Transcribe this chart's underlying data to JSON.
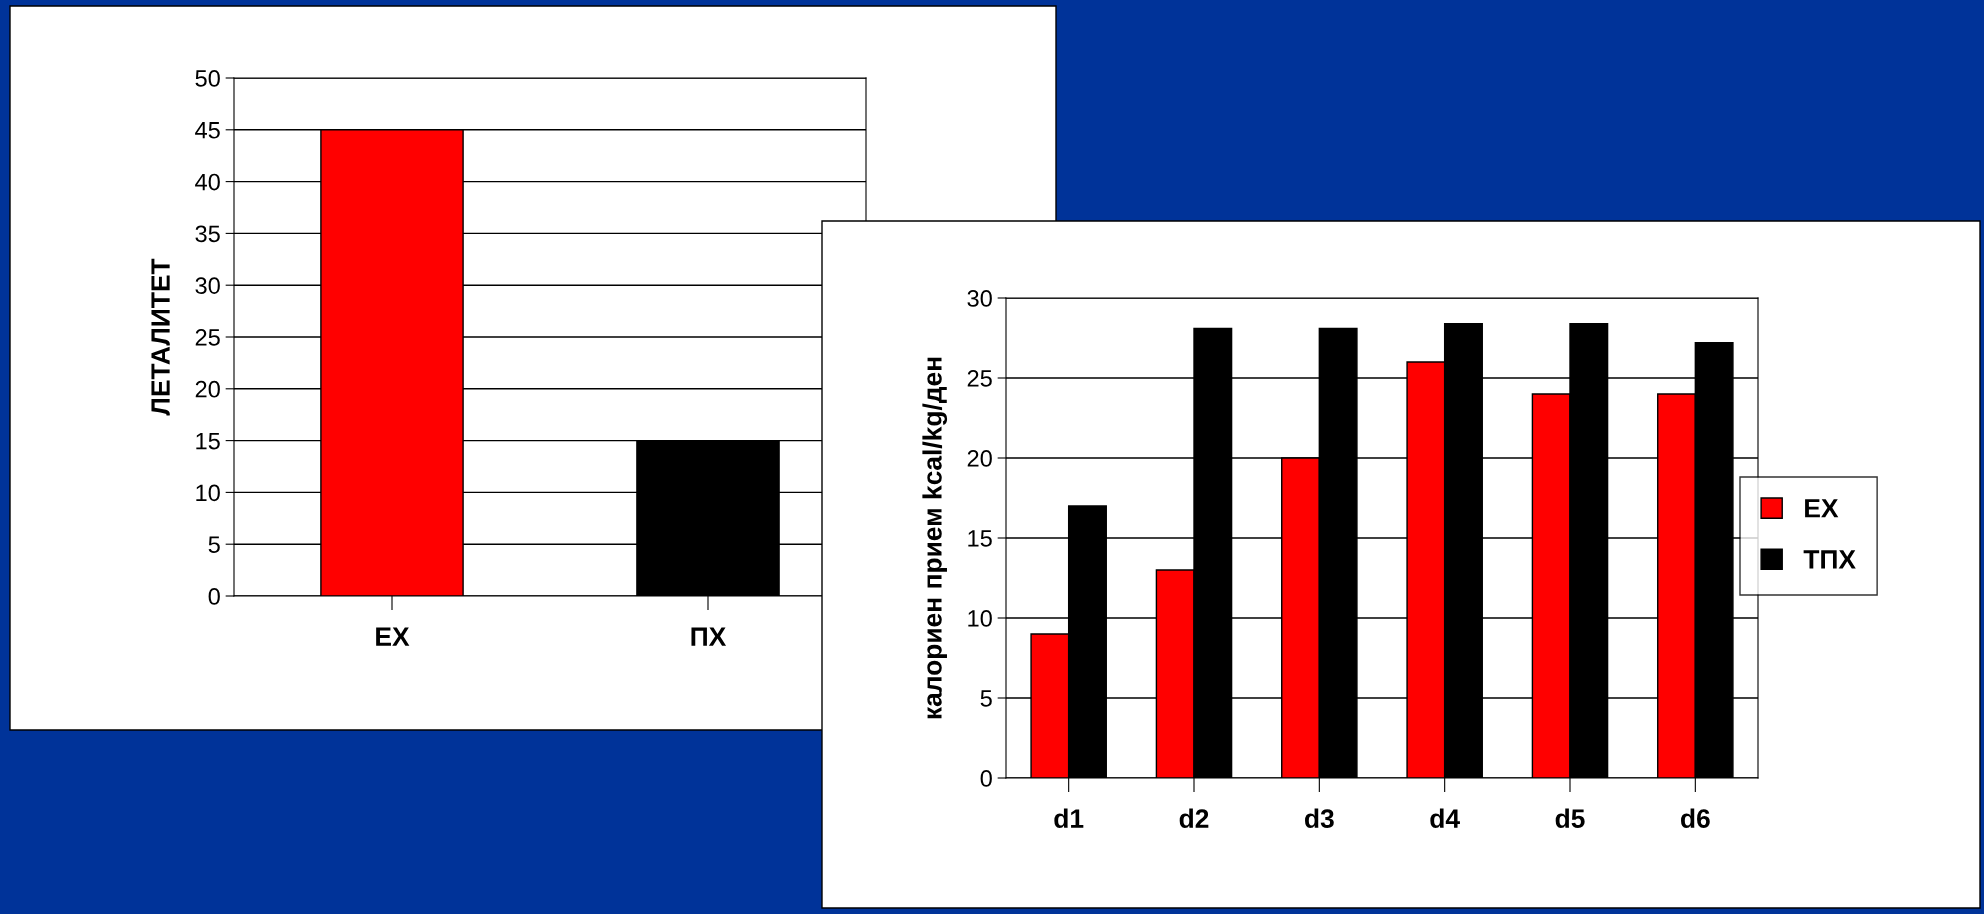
{
  "chart_data": [
    {
      "type": "bar",
      "ylabel": "ЛЕТАЛИТЕТ",
      "categories": [
        "ЕХ",
        "ПХ"
      ],
      "values": [
        45,
        15
      ],
      "colors": [
        "#ff0000",
        "#000000"
      ],
      "ylim": [
        0,
        50
      ],
      "yticks": [
        0,
        5,
        10,
        15,
        20,
        25,
        30,
        35,
        40,
        45,
        50
      ],
      "grid": "y",
      "legend": false
    },
    {
      "type": "bar",
      "ylabel": "калориен прием kcal/kg/ден",
      "categories": [
        "d1",
        "d2",
        "d3",
        "d4",
        "d5",
        "d6"
      ],
      "series": [
        {
          "name": "ЕХ",
          "color": "#ff0000",
          "values": [
            9,
            13,
            20,
            26,
            24,
            24
          ]
        },
        {
          "name": "ТПХ",
          "color": "#000000",
          "values": [
            17,
            28.1,
            28.1,
            28.4,
            28.4,
            27.2
          ]
        }
      ],
      "ylim": [
        0,
        30
      ],
      "yticks": [
        0,
        5,
        10,
        15,
        20,
        25,
        30
      ],
      "grid": "y",
      "legend": "right"
    }
  ]
}
